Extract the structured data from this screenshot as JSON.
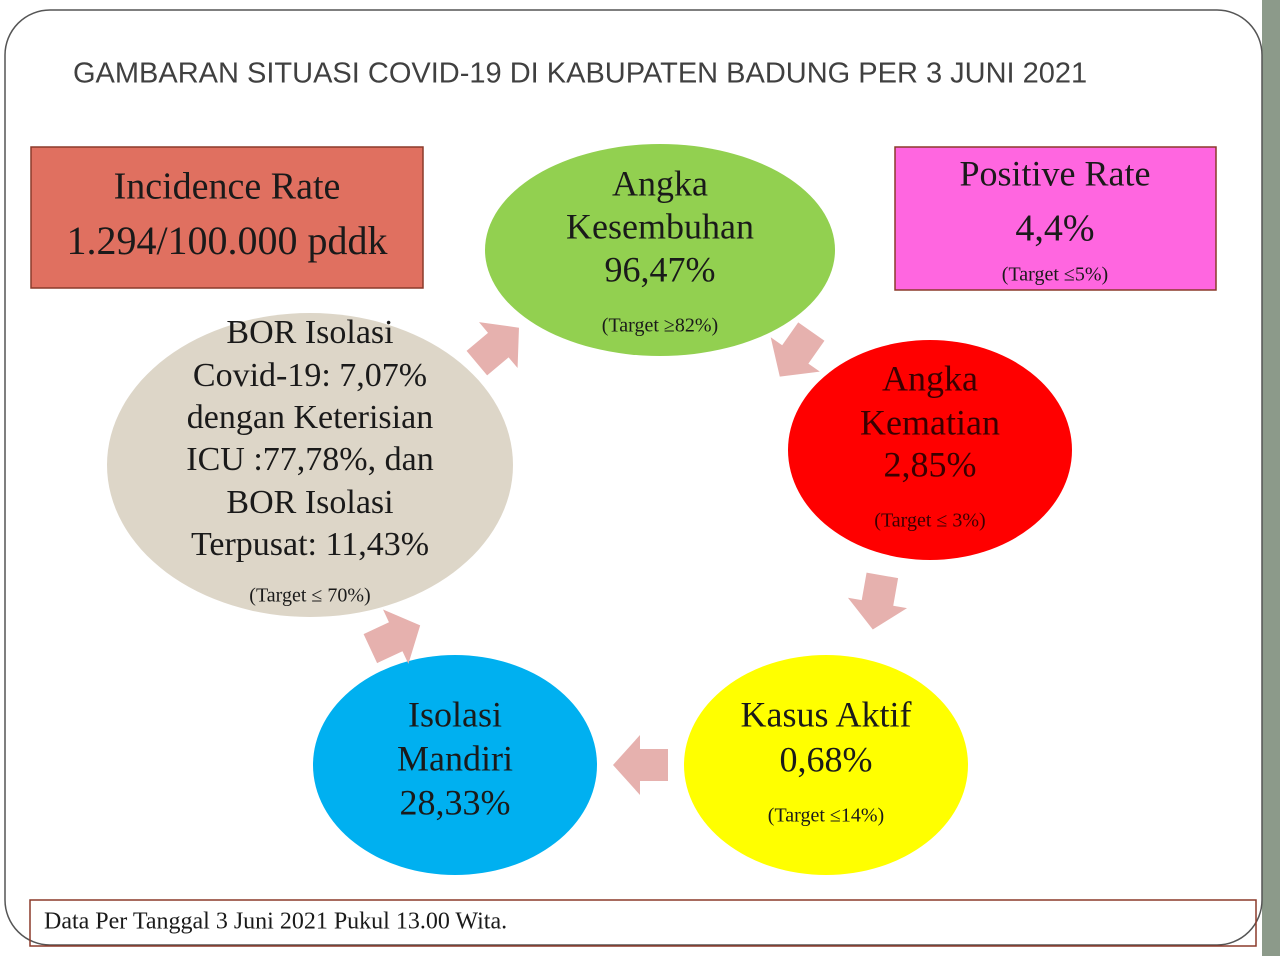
{
  "title": "GAMBARAN SITUASI COVID-19 DI KABUPATEN BADUNG PER 3 JUNI 2021",
  "boxes": [
    {
      "lines": [
        "Incidence Rate",
        "1.294/100.000 pddk"
      ]
    },
    {
      "lines": [
        "Positive Rate",
        "4,4%"
      ],
      "target": "(Target ≤5%)"
    }
  ],
  "nodes": [
    {
      "lines": [
        "Angka",
        "Kesembuhan",
        "96,47%"
      ],
      "target": "(Target ≥82%)"
    },
    {
      "lines": [
        "Angka",
        "Kematian",
        "2,85%"
      ],
      "target": "(Target ≤ 3%)"
    },
    {
      "lines": [
        "Kasus Aktif",
        "0,68%"
      ],
      "target": "(Target ≤14%)"
    },
    {
      "lines": [
        "Isolasi",
        "Mandiri",
        "28,33%"
      ]
    },
    {
      "lines": [
        "BOR Isolasi",
        "Covid-19: 7,07%",
        "dengan Keterisian",
        "ICU :77,78%, dan",
        "BOR Isolasi",
        "Terpusat: 11,43%"
      ],
      "target": "(Target ≤ 70%)"
    }
  ],
  "footer": "Data Per Tanggal 3 Juni 2021 Pukul 13.00 Wita."
}
